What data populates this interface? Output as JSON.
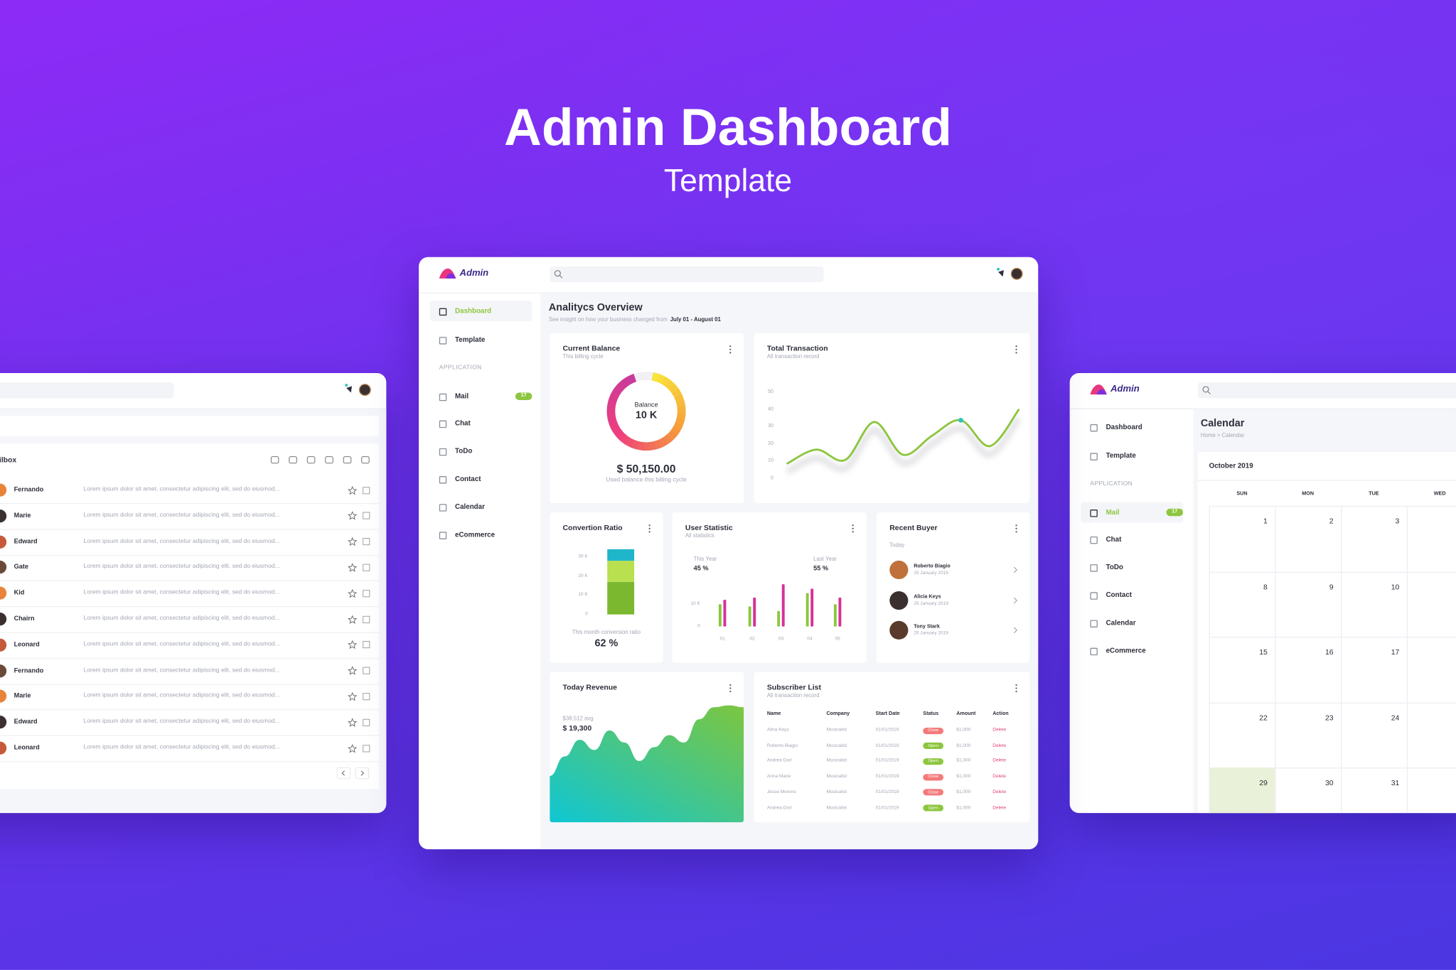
{
  "hero": {
    "title": "Admin Dashboard",
    "subtitle": "Template"
  },
  "logo": "Admin",
  "nav": {
    "main": [
      "Dashboard",
      "Template"
    ],
    "section": "APPLICATION",
    "apps": [
      "Mail",
      "Chat",
      "ToDo",
      "Contact",
      "Calendar",
      "eCommerce"
    ],
    "mail_badge": 17
  },
  "mailbox": {
    "title": "Mailbox",
    "snippet": "Lorem ipsum dolor sit amet, consectetur adipiscing elit, sed do eiusmod...",
    "senders": [
      "Fernando",
      "Marie",
      "Edward",
      "Gate",
      "Kid",
      "Chairn",
      "Leonard",
      "Fernando",
      "Marie",
      "Edward",
      "Leonard"
    ]
  },
  "dashboard": {
    "title": "Analitycs Overview",
    "subtitle": "See insight on how your business changed from",
    "range": "July 01 - August 01",
    "current_balance": {
      "title": "Current Balance",
      "subtitle": "This billing cycle",
      "center_label": "Balance",
      "center_value": "10 K",
      "amount": "$ 50,150.00",
      "note": "Used balance this billing cycle"
    },
    "total_transaction": {
      "title": "Total Transaction",
      "subtitle": "All transaction record",
      "ylim": [
        0,
        50
      ],
      "yticks": [
        0,
        10,
        20,
        30,
        40,
        50
      ],
      "values": [
        9,
        17,
        11,
        33,
        14,
        25,
        34,
        19,
        40
      ],
      "color": "#8dc63f",
      "highlight": 6
    },
    "conversion_ratio": {
      "title": "Convertion Ratio",
      "ylim": [
        0,
        35
      ],
      "yticks": [
        0,
        {
          "value": 10,
          "label": "10 K"
        },
        {
          "value": 20,
          "label": "20 K"
        },
        {
          "value": 30,
          "label": "30 K"
        }
      ],
      "segments": [
        {
          "color": "#7cb82f",
          "value": 17
        },
        {
          "color": "#b9e04f",
          "value": 11
        },
        {
          "color": "#1fb6c9",
          "value": 6
        }
      ],
      "note": "This month conversion ratio",
      "ratio": "62 %"
    },
    "user_statistic": {
      "title": "User Statistic",
      "subtitle": "All statistics",
      "this_year_label": "This Year",
      "this_year": "45 %",
      "last_year_label": "Last Year",
      "last_year": "55 %",
      "categories": [
        "01",
        "02",
        "03",
        "04",
        "05"
      ],
      "ylim": [
        0,
        20
      ],
      "yticks": [
        0,
        {
          "value": 10,
          "label": "10 K"
        }
      ],
      "series": [
        {
          "color": "#8dc63f",
          "values": [
            10,
            9,
            7,
            15,
            10
          ]
        },
        {
          "color": "#d6309a",
          "values": [
            12,
            13,
            19,
            17,
            13
          ]
        }
      ]
    },
    "recent_buyer": {
      "title": "Recent Buyer",
      "subtitle": "Today",
      "buyers": [
        {
          "name": "Roberto Biagio",
          "date": "25 January 2019"
        },
        {
          "name": "Alicia Keys",
          "date": "25 January 2019"
        },
        {
          "name": "Tony Stark",
          "date": "25 January 2019"
        }
      ]
    },
    "today_revenue": {
      "title": "Today Revenue",
      "average": "$38,512 avg",
      "total": "$ 19,300",
      "values": [
        50,
        71,
        89,
        78,
        99,
        86,
        66,
        81,
        94,
        86,
        111,
        124,
        126,
        124
      ]
    },
    "subscriber_list": {
      "title": "Subscriber List",
      "subtitle": "All transaction record",
      "columns": [
        "Name",
        "Company",
        "Start Date",
        "Status",
        "Amount",
        "Action"
      ],
      "rows": [
        [
          "Alina Keys",
          "Musicalist",
          "01/01/2019",
          "Close",
          "$1,000",
          "Delete"
        ],
        [
          "Roberto Biagio",
          "Musicalist",
          "01/01/2019",
          "Open",
          "$1,000",
          "Delete"
        ],
        [
          "Andrea Dori",
          "Musicalist",
          "01/01/2019",
          "Open",
          "$1,000",
          "Delete"
        ],
        [
          "Anna Marie",
          "Musicalist",
          "01/01/2019",
          "Close",
          "$1,000",
          "Delete"
        ],
        [
          "Jesse Moreno",
          "Musicalist",
          "01/01/2019",
          "Close",
          "$1,000",
          "Delete"
        ],
        [
          "Andrea Dori",
          "Musicalist",
          "01/01/2019",
          "Open",
          "$1,000",
          "Delete"
        ]
      ],
      "status_colors": [
        "#f47a7a",
        "#8dc63f",
        "#8dc63f",
        "#f47a7a",
        "#f47a7a",
        "#8dc63f"
      ]
    }
  },
  "calendar": {
    "title": "Calendar",
    "breadcrumb": "Home > Calendar",
    "month": "October 2019",
    "weekdays": [
      "SUN",
      "MON",
      "TUE",
      "WED"
    ],
    "weeks": [
      [
        1,
        2,
        3
      ],
      [
        8,
        9,
        10
      ],
      [
        15,
        16,
        17
      ],
      [
        22,
        23,
        24
      ],
      [
        29,
        30,
        31
      ]
    ],
    "highlight": 29
  }
}
